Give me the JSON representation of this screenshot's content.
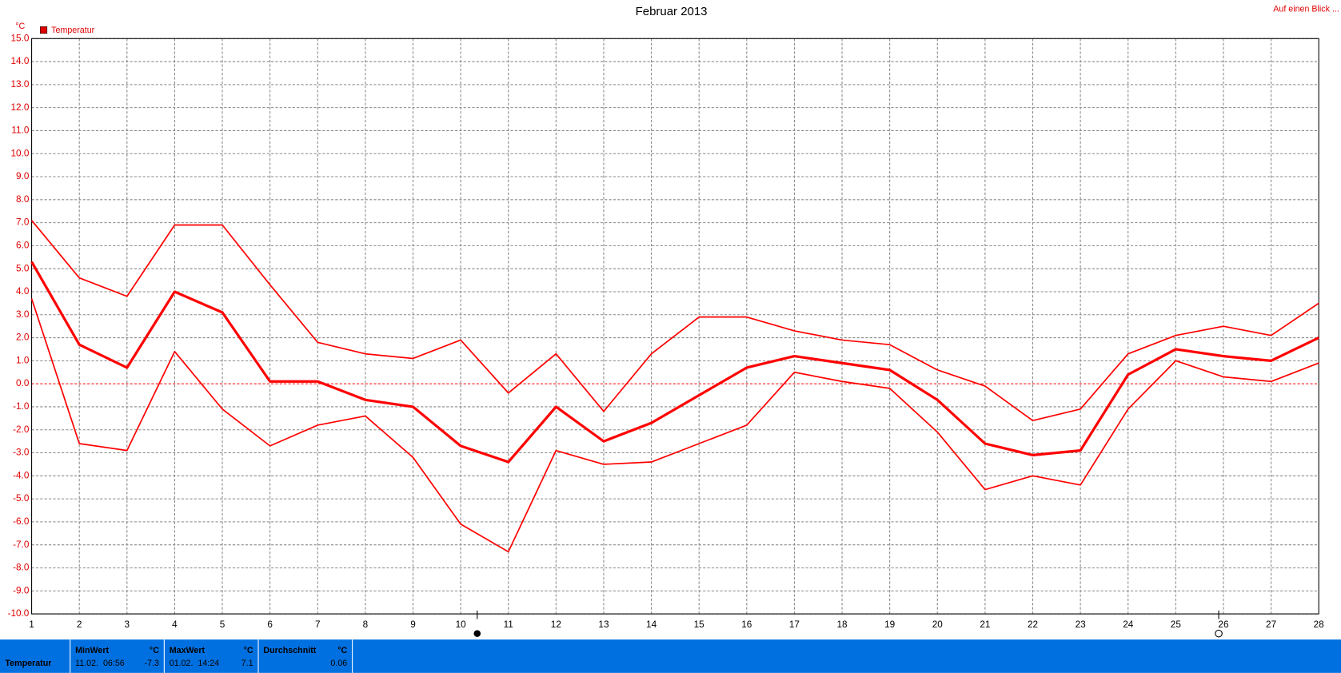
{
  "chart_data": {
    "type": "line",
    "title": "Februar 2013",
    "link": "Auf einen Blick ...",
    "unit": "°C",
    "legend": "Temperatur",
    "categories": [
      "1",
      "2",
      "3",
      "4",
      "5",
      "6",
      "7",
      "8",
      "9",
      "10",
      "11",
      "12",
      "13",
      "14",
      "15",
      "16",
      "17",
      "18",
      "19",
      "20",
      "21",
      "22",
      "23",
      "24",
      "25",
      "26",
      "27",
      "28"
    ],
    "series": [
      {
        "color": "#ff0000",
        "values": [
          7.1,
          4.6,
          3.8,
          6.9,
          6.9,
          4.3,
          1.8,
          1.3,
          1.1,
          1.9,
          -0.4,
          1.3,
          -1.2,
          1.3,
          2.9,
          2.9,
          2.3,
          1.9,
          1.7,
          0.6,
          -0.1,
          -1.6,
          -1.1,
          1.3,
          2.1,
          2.5,
          2.1,
          3.5
        ]
      },
      {
        "color": "#ff0000",
        "values": [
          5.3,
          1.7,
          0.7,
          4.0,
          3.1,
          0.1,
          0.1,
          -0.7,
          -1.0,
          -2.7,
          -3.4,
          -1.0,
          -2.5,
          -1.7,
          -0.5,
          0.7,
          1.2,
          0.9,
          0.6,
          -0.7,
          -2.6,
          -3.1,
          -2.9,
          0.4,
          1.5,
          1.2,
          1.0,
          2.0
        ]
      },
      {
        "color": "#ff0000",
        "values": [
          3.7,
          -2.6,
          -2.9,
          1.4,
          -1.1,
          -2.7,
          -1.8,
          -1.4,
          -3.2,
          -6.1,
          -7.3,
          -2.9,
          -3.5,
          -3.4,
          -2.6,
          -1.8,
          0.5,
          0.1,
          -0.2,
          -2.1,
          -4.6,
          -4.0,
          -4.4,
          -1.1,
          1.0,
          0.3,
          0.1,
          0.9
        ]
      }
    ],
    "ylim": [
      -10,
      15
    ],
    "yticks": [
      {
        "value": -10,
        "label": "-10.0"
      },
      {
        "value": -9,
        "label": "-9.0"
      },
      {
        "value": -8,
        "label": "-8.0"
      },
      {
        "value": -7,
        "label": "-7.0"
      },
      {
        "value": -6,
        "label": "-6.0"
      },
      {
        "value": -5,
        "label": "-5.0"
      },
      {
        "value": -4,
        "label": "-4.0"
      },
      {
        "value": -3,
        "label": "-3.0"
      },
      {
        "value": -2,
        "label": "-2.0"
      },
      {
        "value": -1,
        "label": "-1.0"
      },
      {
        "value": 0,
        "label": "0.0"
      },
      {
        "value": 1,
        "label": "1.0"
      },
      {
        "value": 2,
        "label": "2.0"
      },
      {
        "value": 3,
        "label": "3.0"
      },
      {
        "value": 4,
        "label": "4.0"
      },
      {
        "value": 5,
        "label": "5.0"
      },
      {
        "value": 6,
        "label": "6.0"
      },
      {
        "value": 7,
        "label": "7.0"
      },
      {
        "value": 8,
        "label": "8.0"
      },
      {
        "value": 9,
        "label": "9.0"
      },
      {
        "value": 10,
        "label": "10.0"
      },
      {
        "value": 11,
        "label": "11.0"
      },
      {
        "value": 12,
        "label": "12.0"
      },
      {
        "value": 13,
        "label": "13.0"
      },
      {
        "value": 14,
        "label": "14.0"
      },
      {
        "value": 15,
        "label": "15.0"
      }
    ],
    "grid": true
  },
  "summary": {
    "label": "Temperatur",
    "min": {
      "title": "MinWert",
      "unit": "°C",
      "time": "11.02.  06:56",
      "value": -7.3
    },
    "max": {
      "title": "MaxWert",
      "unit": "°C",
      "time": "01.02.  14:24",
      "value": 7.1
    },
    "avg": {
      "title": "Durchschnitt",
      "unit": "°C",
      "value": 0.06
    }
  }
}
